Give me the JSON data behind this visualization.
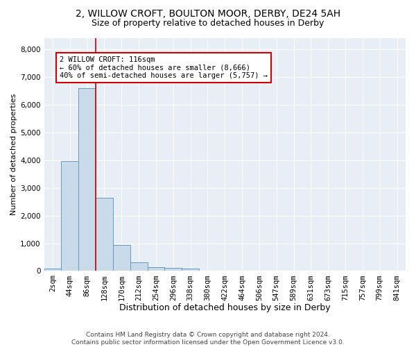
{
  "title1": "2, WILLOW CROFT, BOULTON MOOR, DERBY, DE24 5AH",
  "title2": "Size of property relative to detached houses in Derby",
  "xlabel": "Distribution of detached houses by size in Derby",
  "ylabel": "Number of detached properties",
  "footnote": "Contains HM Land Registry data © Crown copyright and database right 2024.\nContains public sector information licensed under the Open Government Licence v3.0.",
  "bar_labels": [
    "2sqm",
    "44sqm",
    "86sqm",
    "128sqm",
    "170sqm",
    "212sqm",
    "254sqm",
    "296sqm",
    "338sqm",
    "380sqm",
    "422sqm",
    "464sqm",
    "506sqm",
    "547sqm",
    "589sqm",
    "631sqm",
    "673sqm",
    "715sqm",
    "757sqm",
    "799sqm",
    "841sqm"
  ],
  "bar_values": [
    75,
    3970,
    6600,
    2630,
    950,
    310,
    125,
    100,
    80,
    0,
    0,
    0,
    0,
    0,
    0,
    0,
    0,
    0,
    0,
    0,
    0
  ],
  "bar_color": "#c9daea",
  "bar_edge_color": "#6699bb",
  "background_color": "#e8eef5",
  "grid_color": "#ffffff",
  "vline_color": "#cc0000",
  "annotation_text": "2 WILLOW CROFT: 116sqm\n← 60% of detached houses are smaller (8,666)\n40% of semi-detached houses are larger (5,757) →",
  "annotation_box_edge": "#cc0000",
  "ylim": [
    0,
    8400
  ],
  "yticks": [
    0,
    1000,
    2000,
    3000,
    4000,
    5000,
    6000,
    7000,
    8000
  ],
  "title1_fontsize": 10,
  "title2_fontsize": 9,
  "xlabel_fontsize": 9,
  "ylabel_fontsize": 8,
  "tick_fontsize": 7.5,
  "annotation_fontsize": 7.5,
  "footnote_fontsize": 6.5
}
